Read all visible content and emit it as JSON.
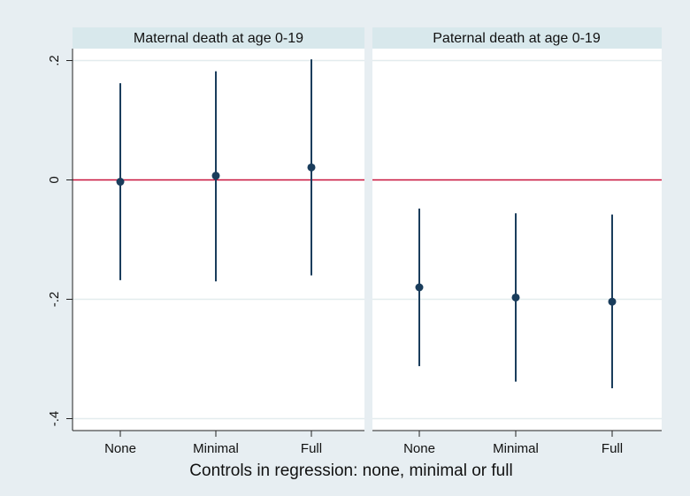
{
  "chart_data": {
    "type": "scatter",
    "subtype": "point-estimates-with-confidence-intervals",
    "xlabel": "Controls in regression: none, minimal or full",
    "ylabel": "",
    "ylim": [
      -0.42,
      0.22
    ],
    "yticks": [
      {
        "value": 0.2,
        "label": ".2"
      },
      {
        "value": 0,
        "label": "0"
      },
      {
        "value": -0.2,
        "label": "-.2"
      },
      {
        "value": -0.4,
        "label": "-.4"
      }
    ],
    "reference_line": {
      "value": 0,
      "color": "#c8143c"
    },
    "categories": [
      "None",
      "Minimal",
      "Full"
    ],
    "colors": {
      "background": "#e7eef2",
      "plot_background": "#ffffff",
      "strip": "#d8e8ec",
      "marker": "#1a3d5c",
      "gridline": "#e3ecee"
    },
    "panels": [
      {
        "title": "Maternal death at age 0-19",
        "points": [
          {
            "category": "None",
            "estimate": -0.003,
            "ci_low": -0.168,
            "ci_high": 0.162
          },
          {
            "category": "Minimal",
            "estimate": 0.007,
            "ci_low": -0.17,
            "ci_high": 0.182
          },
          {
            "category": "Full",
            "estimate": 0.021,
            "ci_low": -0.16,
            "ci_high": 0.202
          }
        ]
      },
      {
        "title": "Paternal death at age 0-19",
        "points": [
          {
            "category": "None",
            "estimate": -0.18,
            "ci_low": -0.312,
            "ci_high": -0.048
          },
          {
            "category": "Minimal",
            "estimate": -0.197,
            "ci_low": -0.338,
            "ci_high": -0.056
          },
          {
            "category": "Full",
            "estimate": -0.204,
            "ci_low": -0.349,
            "ci_high": -0.058
          }
        ]
      }
    ]
  }
}
